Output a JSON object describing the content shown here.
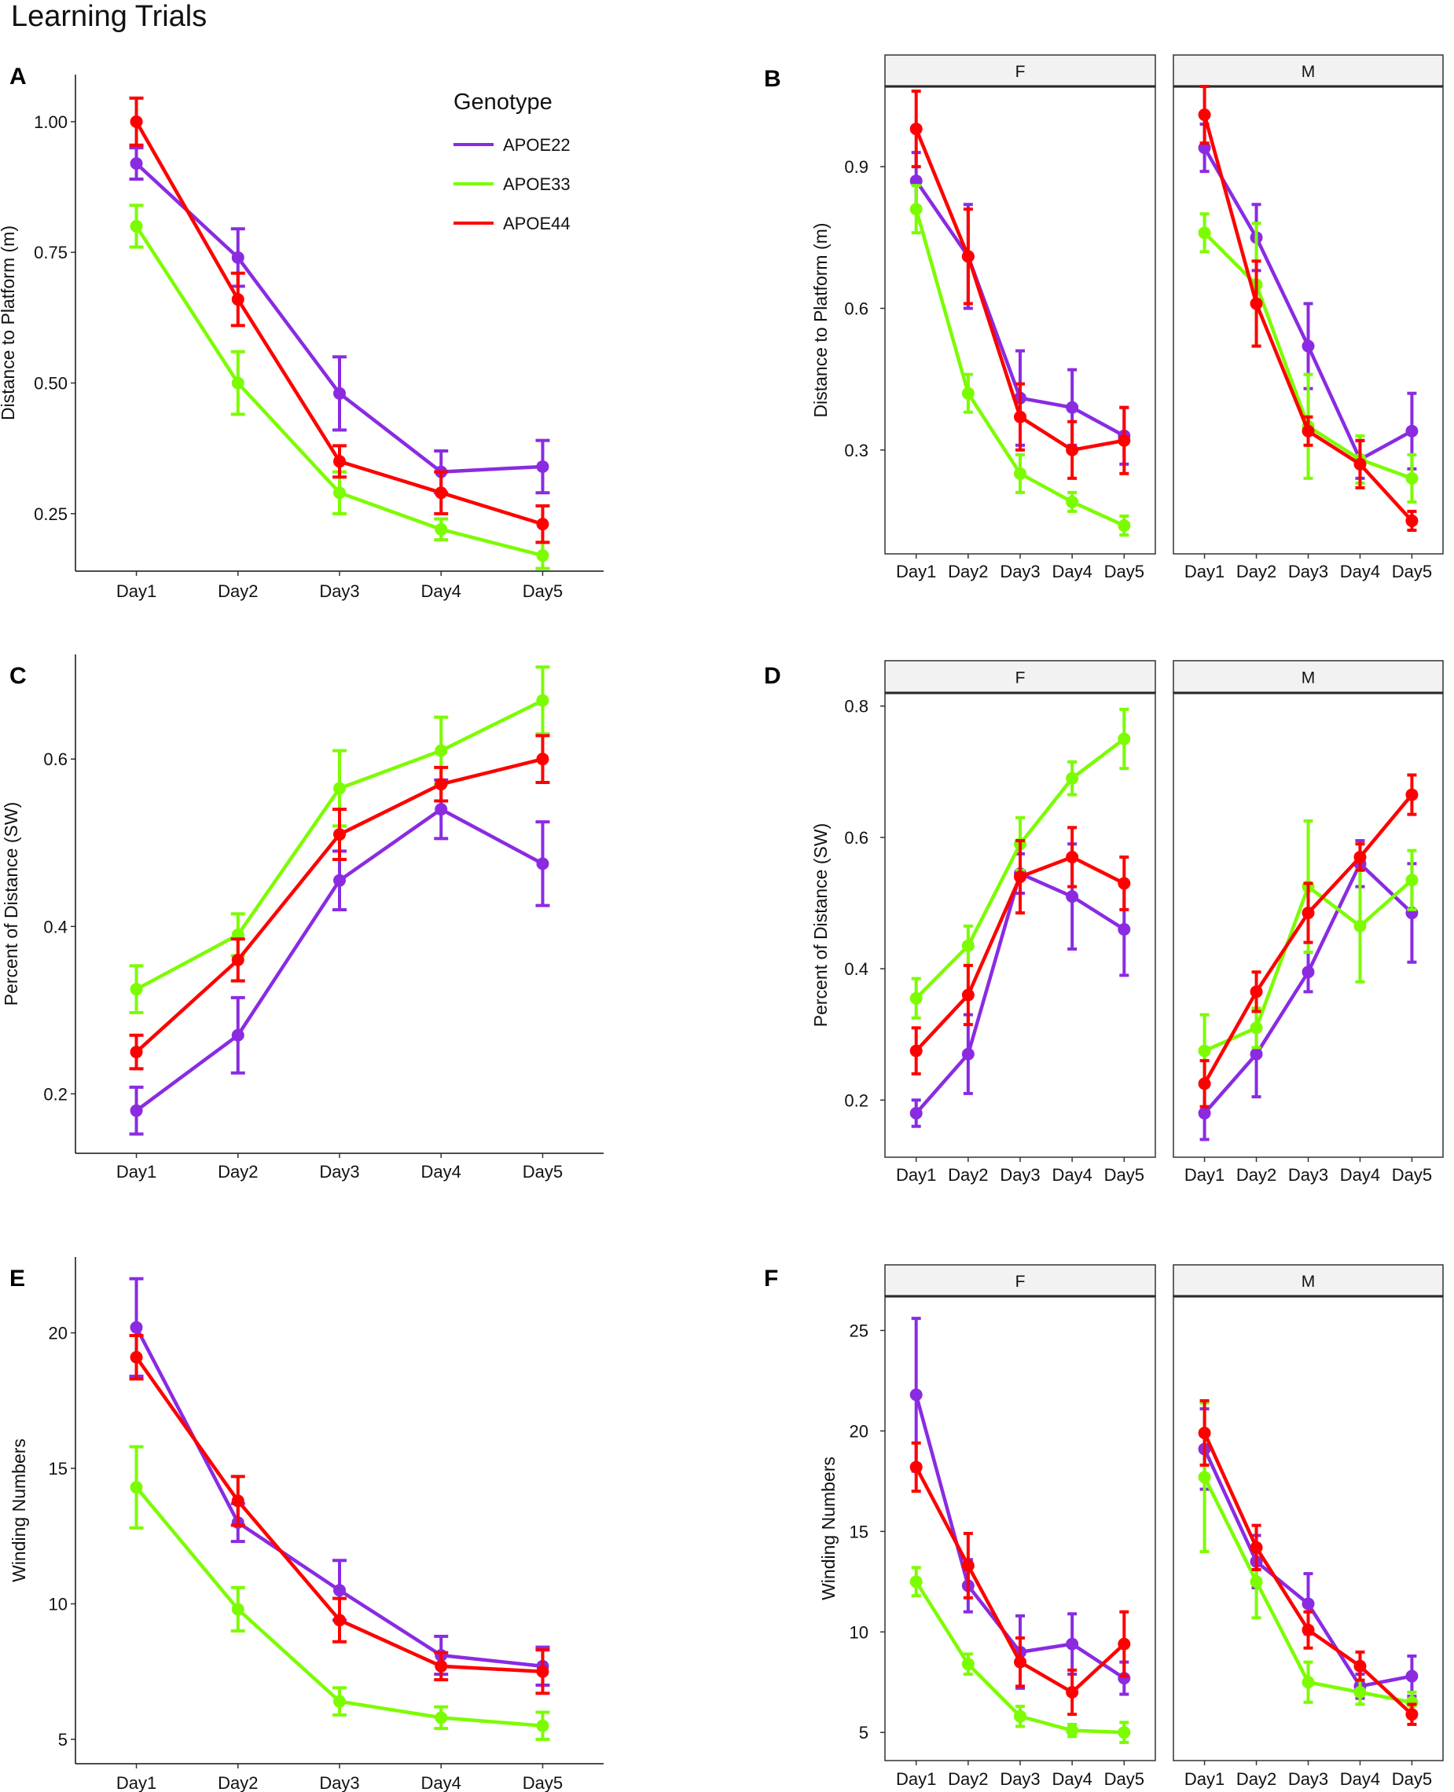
{
  "figure_title": "Learning Trials",
  "legend": {
    "title": "Genotype",
    "entries": [
      {
        "name": "APOE22",
        "color": "#8a2be2"
      },
      {
        "name": "APOE33",
        "color": "#7cfc00"
      },
      {
        "name": "APOE44",
        "color": "#ff0000"
      }
    ]
  },
  "chart_data": [
    {
      "id": "A",
      "panel": "A",
      "type": "line",
      "facets": null,
      "xlabel": "",
      "ylabel": "Distance to Platform (m)",
      "categories": [
        "Day1",
        "Day2",
        "Day3",
        "Day4",
        "Day5"
      ],
      "ylim": [
        0.14,
        1.09
      ],
      "yticks": [
        0.25,
        0.5,
        0.75,
        1.0
      ],
      "ytick_labels": [
        "0.25",
        "0.50",
        "0.75",
        "1.00"
      ],
      "series": [
        {
          "name": "APOE22",
          "values": [
            0.92,
            0.74,
            0.48,
            0.33,
            0.34
          ],
          "errors": [
            0.03,
            0.055,
            0.07,
            0.04,
            0.05
          ]
        },
        {
          "name": "APOE33",
          "values": [
            0.8,
            0.5,
            0.29,
            0.22,
            0.17
          ],
          "errors": [
            0.04,
            0.06,
            0.04,
            0.02,
            0.025
          ]
        },
        {
          "name": "APOE44",
          "values": [
            1.0,
            0.66,
            0.35,
            0.29,
            0.23
          ],
          "errors": [
            0.045,
            0.05,
            0.03,
            0.04,
            0.035
          ]
        }
      ]
    },
    {
      "id": "B",
      "panel": "B",
      "type": "line",
      "facets": [
        "F",
        "M"
      ],
      "xlabel": "",
      "ylabel": "Distance to Platform (m)",
      "categories": [
        "Day1",
        "Day2",
        "Day3",
        "Day4",
        "Day5"
      ],
      "ylim": [
        0.08,
        1.07
      ],
      "yticks": [
        0.3,
        0.6,
        0.9
      ],
      "ytick_labels": [
        "0.3",
        "0.6",
        "0.9"
      ],
      "series_by_facet": [
        [
          {
            "name": "APOE22",
            "values": [
              0.87,
              0.71,
              0.41,
              0.39,
              0.33
            ],
            "errors": [
              0.06,
              0.11,
              0.1,
              0.08,
              0.06
            ]
          },
          {
            "name": "APOE33",
            "values": [
              0.81,
              0.42,
              0.25,
              0.19,
              0.14
            ],
            "errors": [
              0.05,
              0.04,
              0.04,
              0.02,
              0.02
            ]
          },
          {
            "name": "APOE44",
            "values": [
              0.98,
              0.71,
              0.37,
              0.3,
              0.32
            ],
            "errors": [
              0.08,
              0.1,
              0.07,
              0.06,
              0.07
            ]
          }
        ],
        [
          {
            "name": "APOE22",
            "values": [
              0.94,
              0.75,
              0.52,
              0.28,
              0.34
            ],
            "errors": [
              0.05,
              0.07,
              0.09,
              0.04,
              0.08
            ]
          },
          {
            "name": "APOE33",
            "values": [
              0.76,
              0.65,
              0.35,
              0.28,
              0.24
            ],
            "errors": [
              0.04,
              0.13,
              0.11,
              0.05,
              0.05
            ]
          },
          {
            "name": "APOE44",
            "values": [
              1.01,
              0.61,
              0.34,
              0.27,
              0.15
            ],
            "errors": [
              0.06,
              0.09,
              0.03,
              0.05,
              0.02
            ]
          }
        ]
      ]
    },
    {
      "id": "C",
      "panel": "C",
      "type": "line",
      "facets": null,
      "xlabel": "",
      "ylabel": "Percent of Distance (SW)",
      "categories": [
        "Day1",
        "Day2",
        "Day3",
        "Day4",
        "Day5"
      ],
      "ylim": [
        0.129,
        0.725
      ],
      "yticks": [
        0.2,
        0.4,
        0.6
      ],
      "ytick_labels": [
        "0.2",
        "0.4",
        "0.6"
      ],
      "series": [
        {
          "name": "APOE22",
          "values": [
            0.18,
            0.27,
            0.455,
            0.54,
            0.475
          ],
          "errors": [
            0.028,
            0.045,
            0.035,
            0.035,
            0.05
          ]
        },
        {
          "name": "APOE33",
          "values": [
            0.325,
            0.39,
            0.565,
            0.61,
            0.67
          ],
          "errors": [
            0.028,
            0.025,
            0.045,
            0.04,
            0.04
          ]
        },
        {
          "name": "APOE44",
          "values": [
            0.25,
            0.36,
            0.51,
            0.57,
            0.6
          ],
          "errors": [
            0.02,
            0.025,
            0.03,
            0.02,
            0.028
          ]
        }
      ]
    },
    {
      "id": "D",
      "panel": "D",
      "type": "line",
      "facets": [
        "F",
        "M"
      ],
      "xlabel": "",
      "ylabel": "Percent of Distance (SW)",
      "categories": [
        "Day1",
        "Day2",
        "Day3",
        "Day4",
        "Day5"
      ],
      "ylim": [
        0.113,
        0.82
      ],
      "yticks": [
        0.2,
        0.4,
        0.6,
        0.8
      ],
      "ytick_labels": [
        "0.2",
        "0.4",
        "0.6",
        "0.8"
      ],
      "series_by_facet": [
        [
          {
            "name": "APOE22",
            "values": [
              0.18,
              0.27,
              0.545,
              0.51,
              0.46
            ],
            "errors": [
              0.02,
              0.06,
              0.03,
              0.08,
              0.07
            ]
          },
          {
            "name": "APOE33",
            "values": [
              0.355,
              0.435,
              0.59,
              0.69,
              0.75
            ],
            "errors": [
              0.03,
              0.03,
              0.04,
              0.025,
              0.045
            ]
          },
          {
            "name": "APOE44",
            "values": [
              0.275,
              0.36,
              0.54,
              0.57,
              0.53
            ],
            "errors": [
              0.035,
              0.045,
              0.055,
              0.045,
              0.04
            ]
          }
        ],
        [
          {
            "name": "APOE22",
            "values": [
              0.18,
              0.27,
              0.395,
              0.56,
              0.485
            ],
            "errors": [
              0.04,
              0.065,
              0.03,
              0.035,
              0.075
            ]
          },
          {
            "name": "APOE33",
            "values": [
              0.275,
              0.31,
              0.525,
              0.465,
              0.535
            ],
            "errors": [
              0.055,
              0.03,
              0.1,
              0.085,
              0.045
            ]
          },
          {
            "name": "APOE44",
            "values": [
              0.225,
              0.365,
              0.485,
              0.57,
              0.665
            ],
            "errors": [
              0.035,
              0.03,
              0.045,
              0.02,
              0.03
            ]
          }
        ]
      ]
    },
    {
      "id": "E",
      "panel": "E",
      "type": "line",
      "facets": null,
      "xlabel": "",
      "ylabel": "Winding Numbers",
      "categories": [
        "Day1",
        "Day2",
        "Day3",
        "Day4",
        "Day5"
      ],
      "ylim": [
        4.1,
        22.8
      ],
      "yticks": [
        5,
        10,
        15,
        20
      ],
      "ytick_labels": [
        "5",
        "10",
        "15",
        "20"
      ],
      "series": [
        {
          "name": "APOE22",
          "values": [
            20.2,
            13.0,
            10.5,
            8.1,
            7.7
          ],
          "errors": [
            1.8,
            0.7,
            1.1,
            0.7,
            0.7
          ]
        },
        {
          "name": "APOE33",
          "values": [
            14.3,
            9.8,
            6.4,
            5.8,
            5.5
          ],
          "errors": [
            1.5,
            0.8,
            0.5,
            0.4,
            0.5
          ]
        },
        {
          "name": "APOE44",
          "values": [
            19.1,
            13.8,
            9.4,
            7.7,
            7.5
          ],
          "errors": [
            0.8,
            0.9,
            0.8,
            0.5,
            0.8
          ]
        }
      ]
    },
    {
      "id": "F",
      "panel": "F",
      "type": "line",
      "facets": [
        "F",
        "M"
      ],
      "xlabel": "",
      "ylabel": "Winding Numbers",
      "categories": [
        "Day1",
        "Day2",
        "Day3",
        "Day4",
        "Day5"
      ],
      "ylim": [
        3.6,
        26.7
      ],
      "yticks": [
        5,
        10,
        15,
        20,
        25
      ],
      "ytick_labels": [
        "5",
        "10",
        "15",
        "20",
        "25"
      ],
      "series_by_facet": [
        [
          {
            "name": "APOE22",
            "values": [
              21.8,
              12.3,
              9.0,
              9.4,
              7.7
            ],
            "errors": [
              3.8,
              1.3,
              1.8,
              1.5,
              0.8
            ]
          },
          {
            "name": "APOE33",
            "values": [
              12.5,
              8.4,
              5.8,
              5.1,
              5.0
            ],
            "errors": [
              0.7,
              0.5,
              0.5,
              0.3,
              0.5
            ]
          },
          {
            "name": "APOE44",
            "values": [
              18.2,
              13.3,
              8.5,
              7.0,
              9.4
            ],
            "errors": [
              1.2,
              1.6,
              1.2,
              1.1,
              1.6
            ]
          }
        ],
        [
          {
            "name": "APOE22",
            "values": [
              19.1,
              13.5,
              11.4,
              7.3,
              7.8
            ],
            "errors": [
              2.0,
              1.3,
              1.5,
              0.6,
              1.0
            ]
          },
          {
            "name": "APOE33",
            "values": [
              17.7,
              12.5,
              7.5,
              7.0,
              6.5
            ],
            "errors": [
              3.7,
              1.8,
              1.0,
              0.6,
              0.5
            ]
          },
          {
            "name": "APOE44",
            "values": [
              19.9,
              14.2,
              10.1,
              8.3,
              5.9
            ],
            "errors": [
              1.6,
              1.1,
              0.9,
              0.7,
              0.5
            ]
          }
        ]
      ]
    }
  ]
}
